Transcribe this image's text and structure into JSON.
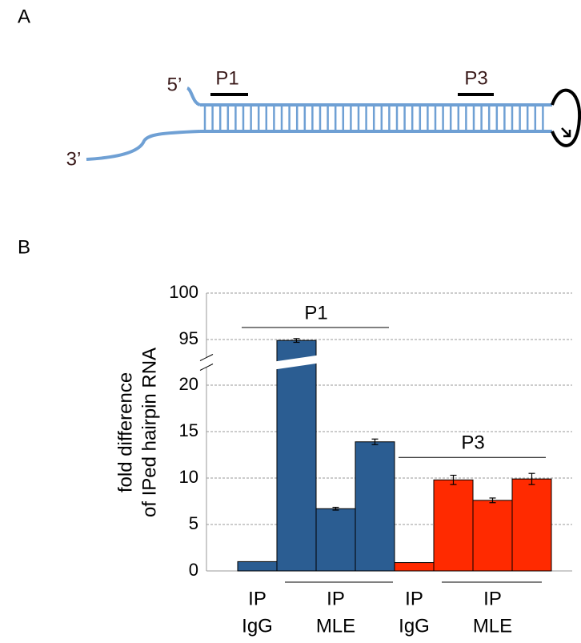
{
  "diagram": {
    "panel_label": "A",
    "five_prime": "5’",
    "three_prime": "3’",
    "probes": [
      "P1",
      "P3"
    ]
  },
  "chart_data": {
    "type": "bar",
    "panel_label": "B",
    "ylabel": [
      "fold difference",
      "of IPed hairpin RNA"
    ],
    "x_labels": [
      [
        "IP",
        "IgG"
      ],
      [
        "IP",
        "MLE"
      ]
    ],
    "series": [
      {
        "name": "P1",
        "color": "#2b5d92",
        "values": [
          1,
          94.9,
          6.7,
          13.9
        ],
        "errors": [
          null,
          0.2,
          0.15,
          0.3
        ]
      },
      {
        "name": "P3",
        "color": "#ff2a00",
        "values": [
          0.9,
          9.8,
          7.6,
          9.9
        ],
        "errors": [
          null,
          0.5,
          0.25,
          0.6
        ]
      }
    ],
    "ylim": [
      0,
      100
    ],
    "ybreak": [
      22.5,
      92.5
    ],
    "yticks": [
      0,
      5,
      10,
      15,
      20,
      95,
      100
    ],
    "grid": true
  }
}
